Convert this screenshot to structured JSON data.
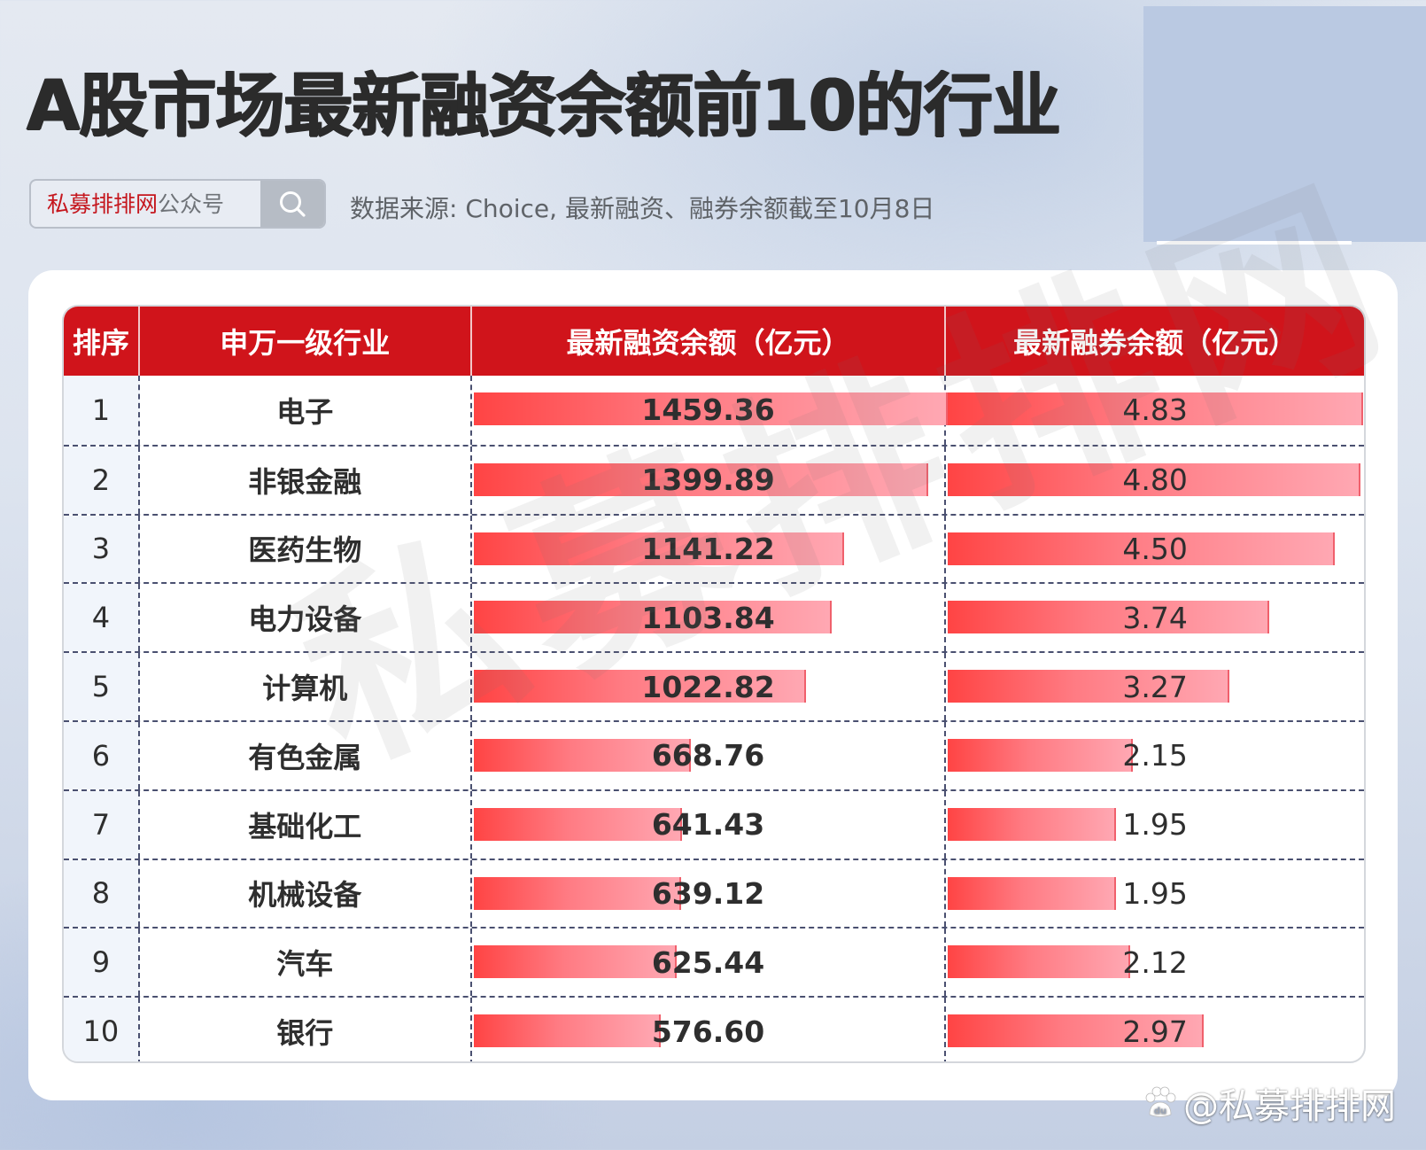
{
  "header": {
    "title": "A股市场最新融资余额前10的行业",
    "search_box": {
      "brand": "私募排排网",
      "suffix": "公众号",
      "icon": "search-icon"
    },
    "source": "数据来源: Choice, 最新融资、融券余额截至10月8日"
  },
  "table": {
    "columns": [
      "排序",
      "申万一级行业",
      "最新融资余额（亿元）",
      "最新融券余额（亿元）"
    ],
    "rows": [
      {
        "rank": "1",
        "industry": "电子",
        "financing": "1459.36",
        "lending": "4.83"
      },
      {
        "rank": "2",
        "industry": "非银金融",
        "financing": "1399.89",
        "lending": "4.80"
      },
      {
        "rank": "3",
        "industry": "医药生物",
        "financing": "1141.22",
        "lending": "4.50"
      },
      {
        "rank": "4",
        "industry": "电力设备",
        "financing": "1103.84",
        "lending": "3.74"
      },
      {
        "rank": "5",
        "industry": "计算机",
        "financing": "1022.82",
        "lending": "3.27"
      },
      {
        "rank": "6",
        "industry": "有色金属",
        "financing": "668.76",
        "lending": "2.15"
      },
      {
        "rank": "7",
        "industry": "基础化工",
        "financing": "641.43",
        "lending": "1.95"
      },
      {
        "rank": "8",
        "industry": "机械设备",
        "financing": "639.12",
        "lending": "1.95"
      },
      {
        "rank": "9",
        "industry": "汽车",
        "financing": "625.44",
        "lending": "2.12"
      },
      {
        "rank": "10",
        "industry": "银行",
        "financing": "576.60",
        "lending": "2.97"
      }
    ]
  },
  "watermark": "私募排排网",
  "footer": {
    "logo_icon": "baidu-paw-icon",
    "handle": "@私募排排网"
  },
  "colors": {
    "header_red": "#d0141b",
    "brand_red": "#c5161d",
    "bar_start": "#ff4444",
    "bar_end": "#ffa8b3",
    "title": "#2b2b2b"
  },
  "chart_data": {
    "type": "table",
    "title": "A股市场最新融资余额前10的行业",
    "subtitle": "数据来源: Choice, 最新融资、融券余额截至10月8日",
    "columns": [
      "排序",
      "申万一级行业",
      "最新融资余额（亿元）",
      "最新融券余额（亿元）"
    ],
    "categories": [
      "电子",
      "非银金融",
      "医药生物",
      "电力设备",
      "计算机",
      "有色金属",
      "基础化工",
      "机械设备",
      "汽车",
      "银行"
    ],
    "series": [
      {
        "name": "最新融资余额（亿元）",
        "values": [
          1459.36,
          1399.89,
          1141.22,
          1103.84,
          1022.82,
          668.76,
          641.43,
          639.12,
          625.44,
          576.6
        ]
      },
      {
        "name": "最新融券余额（亿元）",
        "values": [
          4.83,
          4.8,
          4.5,
          3.74,
          3.27,
          2.15,
          1.95,
          1.95,
          2.12,
          2.97
        ]
      }
    ],
    "in_cell_bars": true,
    "unit": "亿元"
  }
}
